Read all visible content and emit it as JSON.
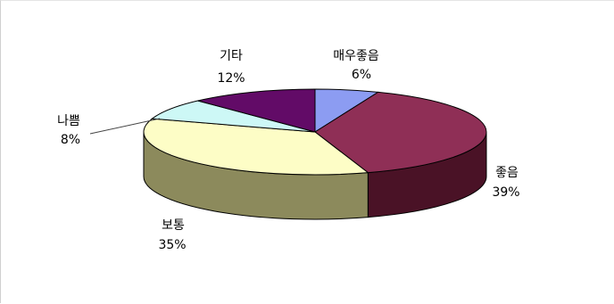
{
  "chart_data": {
    "type": "pie",
    "style": "3d",
    "legend": "none",
    "slices": [
      {
        "label": "매우좋음",
        "value": 6,
        "value_label": "6%",
        "color": "#8c9cf2",
        "side_color": "#5a6bb8"
      },
      {
        "label": "좋음",
        "value": 39,
        "value_label": "39%",
        "color": "#8f2f56",
        "side_color": "#4a1226"
      },
      {
        "label": "보통",
        "value": 35,
        "value_label": "35%",
        "color": "#fdfdc6",
        "side_color": "#8c8a5c"
      },
      {
        "label": "나쁨",
        "value": 8,
        "value_label": "8%",
        "color": "#cdf8f6",
        "side_color": "#6b9fa3"
      },
      {
        "label": "기타",
        "value": 12,
        "value_label": "12%",
        "color": "#620b67",
        "side_color": "#2e0534"
      }
    ]
  }
}
